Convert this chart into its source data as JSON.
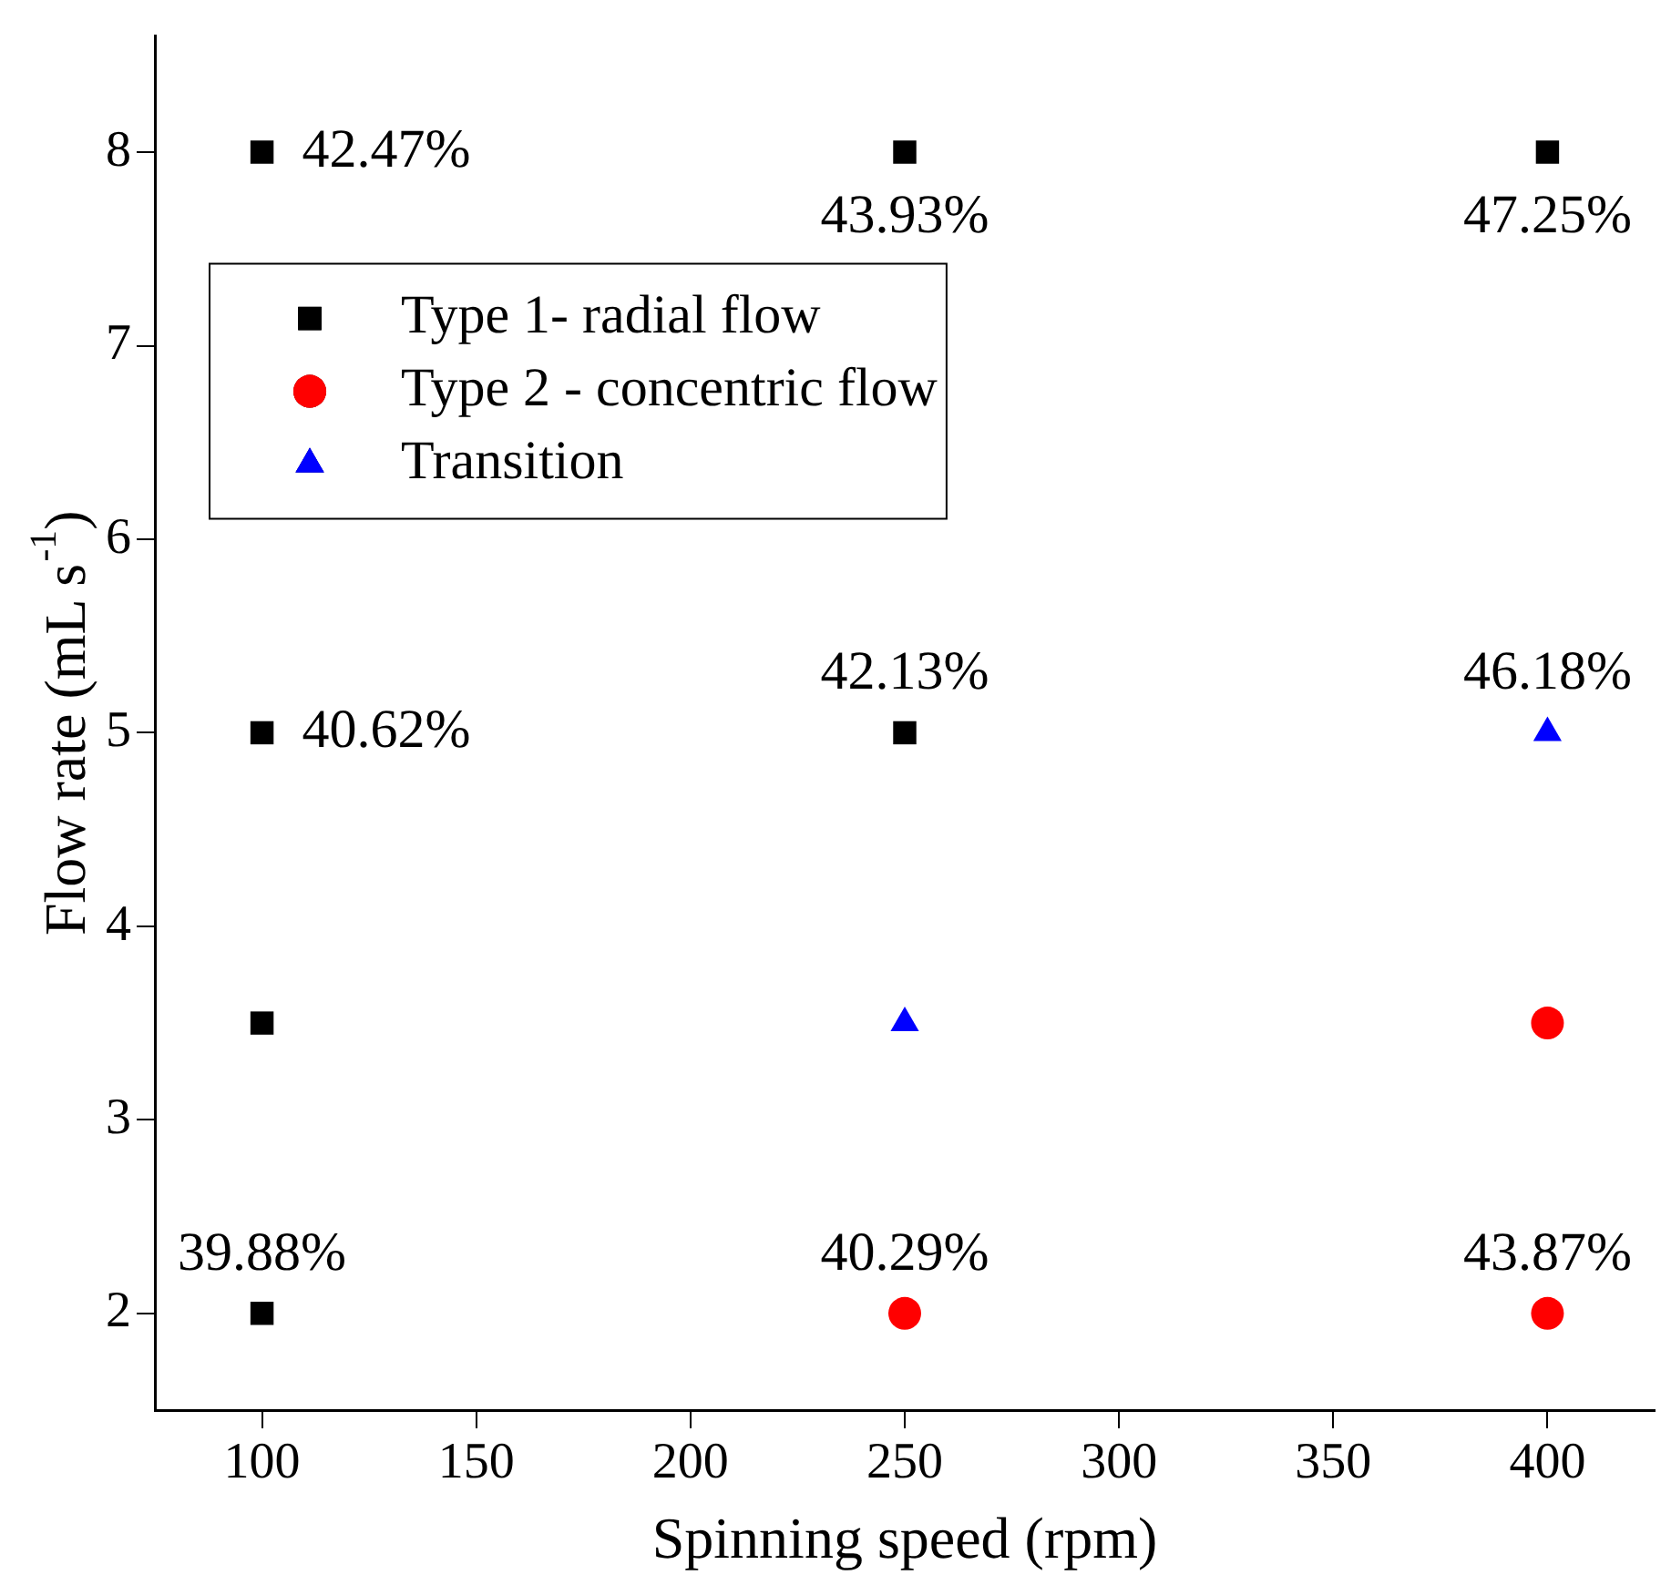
{
  "chart_data": {
    "type": "scatter",
    "xlabel": "Spinning speed (rpm)",
    "ylabel": "Flow rate (mL s$^{-1}$)",
    "xlim": [
      75,
      425
    ],
    "xticks": [
      100,
      150,
      200,
      250,
      300,
      350,
      400
    ],
    "ylim": [
      1.5,
      8.6
    ],
    "yticks": [
      2,
      3,
      4,
      5,
      6,
      7,
      8
    ],
    "grid": false,
    "legend": "top left",
    "series": [
      {
        "name": "Type 1- radial flow",
        "color": "#000000",
        "marker": "square",
        "x": [
          100,
          250,
          400,
          100,
          250,
          100,
          100
        ],
        "values": [
          8,
          8,
          8,
          5,
          5,
          3.5,
          2
        ]
      },
      {
        "name": "Type 2 - concentric flow",
        "color": "#ff0000",
        "marker": "circle",
        "x": [
          250,
          400,
          400
        ],
        "values": [
          2,
          2,
          3.5
        ]
      },
      {
        "name": "Transition",
        "color": "#0000ff",
        "marker": "triangle",
        "x": [
          250,
          400
        ],
        "values": [
          3.5,
          5
        ]
      }
    ],
    "annotations": [
      {
        "text": "42.47%",
        "x": 100,
        "y": 8
      },
      {
        "text": "43.93%",
        "x": 250,
        "y": 8
      },
      {
        "text": "47.25%",
        "x": 400,
        "y": 8
      },
      {
        "text": "40.62%",
        "x": 100,
        "y": 5
      },
      {
        "text": "42.13%",
        "x": 250,
        "y": 5
      },
      {
        "text": "46.18%",
        "x": 400,
        "y": 5
      },
      {
        "text": "39.88%",
        "x": 100,
        "y": 2
      },
      {
        "text": "40.29%",
        "x": 250,
        "y": 2
      },
      {
        "text": "43.87%",
        "x": 400,
        "y": 2
      }
    ]
  }
}
